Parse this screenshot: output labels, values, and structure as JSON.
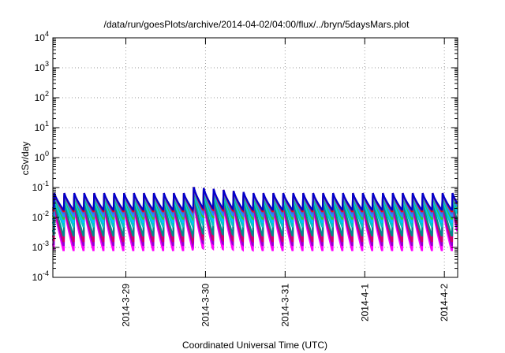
{
  "chart_data": {
    "type": "line",
    "title": "/data/run/goesPlots/archive/2014-04-02/04:00/flux/../bryn/5daysMars.plot",
    "xlabel": "Coordinated Universal Time (UTC)",
    "ylabel": "cSv/day",
    "y_scale": "log",
    "ylim": [
      0.0001,
      10000
    ],
    "xlim": [
      "2014-03-28 02:00",
      "2014-04-02 04:00"
    ],
    "grid": true,
    "y_ticks": [
      {
        "base": "10",
        "exp": "-4"
      },
      {
        "base": "10",
        "exp": "-3"
      },
      {
        "base": "10",
        "exp": "-2"
      },
      {
        "base": "10",
        "exp": "-1"
      },
      {
        "base": "10",
        "exp": "0"
      },
      {
        "base": "10",
        "exp": "1"
      },
      {
        "base": "10",
        "exp": "2"
      },
      {
        "base": "10",
        "exp": "3"
      },
      {
        "base": "10",
        "exp": "4"
      }
    ],
    "x_ticks": [
      {
        "label": "2014-3-29",
        "date": "2014-03-29 00:00"
      },
      {
        "label": "2014-3-30",
        "date": "2014-03-30 00:00"
      },
      {
        "label": "2014-3-31",
        "date": "2014-03-31 00:00"
      },
      {
        "label": "2014-4-1",
        "date": "2014-04-01 00:00"
      },
      {
        "label": "2014-4-2",
        "date": "2014-04-02 00:00"
      }
    ],
    "sawtooth_period_hours": 3,
    "series": [
      {
        "color": "#ff00ff",
        "peak": 0.025,
        "trough": 0.0008
      },
      {
        "color": "#9400d3",
        "peak": 0.03,
        "trough": 0.0012
      },
      {
        "color": "#d0006a",
        "peak": 0.035,
        "trough": 0.0016
      },
      {
        "color": "#008b8b",
        "peak": 0.04,
        "trough": 0.0025
      },
      {
        "color": "#00c8c8",
        "peak": 0.05,
        "trough": 0.005
      },
      {
        "color": "#00bfff",
        "peak": 0.055,
        "trough": 0.007
      },
      {
        "color": "#32cd32",
        "peak": 0.055,
        "trough": 0.009
      },
      {
        "color": "#1e90ff",
        "peak": 0.06,
        "trough": 0.011
      },
      {
        "color": "#4169e1",
        "peak": 0.065,
        "trough": 0.014
      },
      {
        "color": "#ff0000",
        "peak": 0.065,
        "trough": 0.016
      },
      {
        "color": "#0000cd",
        "peak": 0.065,
        "trough": 0.018
      }
    ],
    "enhanced_window": {
      "start": "2014-03-29 20:00",
      "end": "2014-03-30 14:00",
      "peak_factor": 1.6
    }
  }
}
